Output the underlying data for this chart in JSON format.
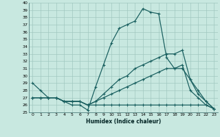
{
  "xlabel": "Humidex (Indice chaleur)",
  "bg_color": "#c8e8e0",
  "grid_color": "#a0c8c0",
  "line_color": "#1a6060",
  "xlim": [
    -0.5,
    23.5
  ],
  "ylim": [
    25,
    40
  ],
  "xticks": [
    0,
    1,
    2,
    3,
    4,
    5,
    6,
    7,
    8,
    9,
    10,
    11,
    12,
    13,
    14,
    15,
    16,
    17,
    18,
    19,
    20,
    21,
    22,
    23
  ],
  "yticks": [
    25,
    26,
    27,
    28,
    29,
    30,
    31,
    32,
    33,
    34,
    35,
    36,
    37,
    38,
    39,
    40
  ],
  "series": [
    {
      "x": [
        0,
        1,
        2,
        3,
        4,
        5,
        6,
        7,
        8,
        9,
        10,
        11,
        12,
        13,
        14,
        15,
        16,
        17,
        18,
        19,
        20,
        21,
        22,
        23
      ],
      "y": [
        29,
        28,
        27,
        27,
        26.5,
        26,
        26,
        25.3,
        28.5,
        31.5,
        34.5,
        36.5,
        37,
        37.5,
        39.2,
        38.7,
        38.5,
        32.5,
        31.0,
        31.0,
        29.5,
        27.5,
        26.5,
        25.5
      ]
    },
    {
      "x": [
        0,
        1,
        2,
        3,
        4,
        5,
        6,
        7,
        8,
        9,
        10,
        11,
        12,
        13,
        14,
        15,
        16,
        17,
        18,
        19,
        20,
        21,
        22,
        23
      ],
      "y": [
        27,
        27,
        27,
        27,
        26.5,
        26.5,
        26.5,
        26,
        26.5,
        27.5,
        28.5,
        29.5,
        30,
        31,
        31.5,
        32,
        32.5,
        33,
        33,
        33.5,
        29.5,
        28,
        26.5,
        25.5
      ]
    },
    {
      "x": [
        0,
        1,
        2,
        3,
        4,
        5,
        6,
        7,
        8,
        9,
        10,
        11,
        12,
        13,
        14,
        15,
        16,
        17,
        18,
        19,
        20,
        21,
        22,
        23
      ],
      "y": [
        27,
        27,
        27,
        27,
        26.5,
        26.5,
        26.5,
        26,
        26.5,
        27,
        27.5,
        28,
        28.5,
        29,
        29.5,
        30,
        30.5,
        31,
        31,
        31.5,
        28,
        27,
        26,
        25.5
      ]
    },
    {
      "x": [
        0,
        1,
        2,
        3,
        4,
        5,
        6,
        7,
        8,
        9,
        10,
        11,
        12,
        13,
        14,
        15,
        16,
        17,
        18,
        19,
        20,
        21,
        22,
        23
      ],
      "y": [
        27,
        27,
        27,
        27,
        26.5,
        26.5,
        26.5,
        26,
        26,
        26,
        26,
        26,
        26,
        26,
        26,
        26,
        26,
        26,
        26,
        26,
        26,
        26,
        26,
        25.5
      ]
    }
  ]
}
